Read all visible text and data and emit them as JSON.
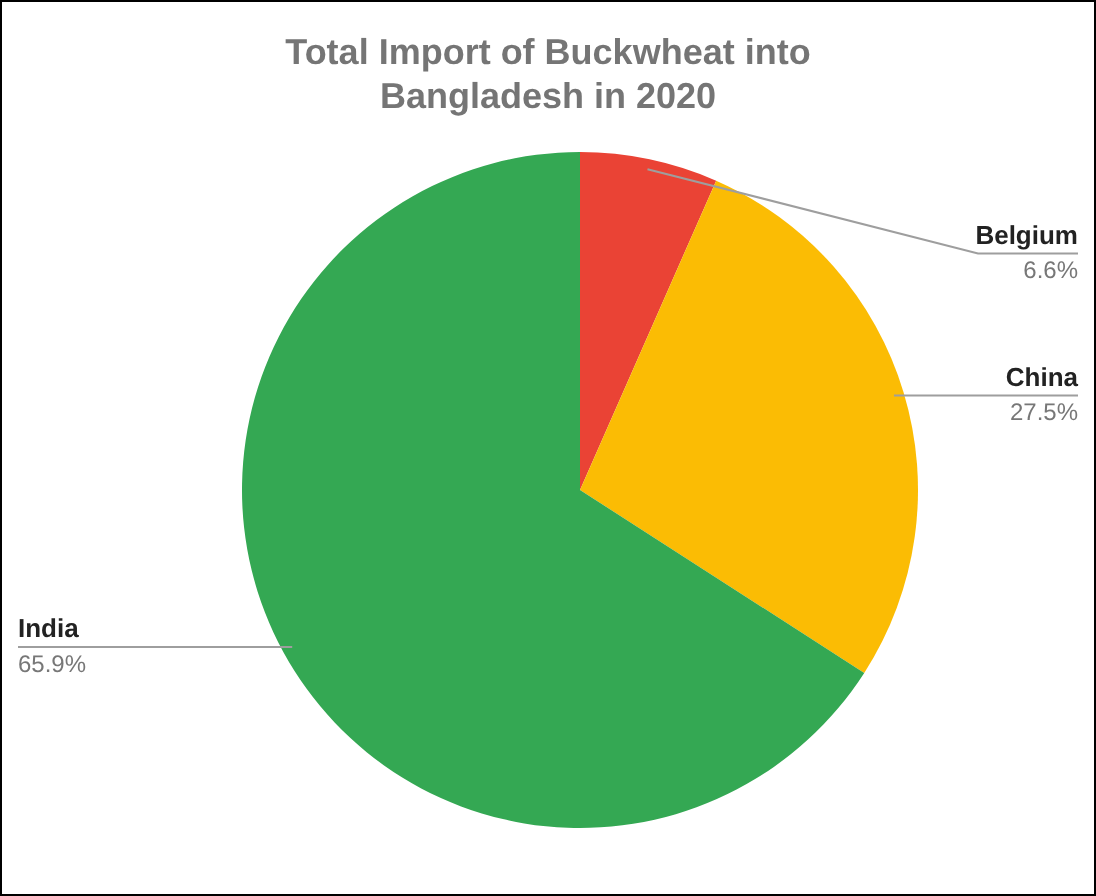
{
  "chart_data": {
    "type": "pie",
    "title": "Total Import of Buckwheat into Bangladesh in 2020",
    "categories": [
      "Belgium",
      "China",
      "India"
    ],
    "values": [
      6.6,
      27.5,
      65.9
    ],
    "colors": [
      "#ea4335",
      "#fbbc04",
      "#34a853"
    ],
    "value_labels": [
      "6.6%",
      "27.5%",
      "65.9%"
    ],
    "legend": false
  }
}
